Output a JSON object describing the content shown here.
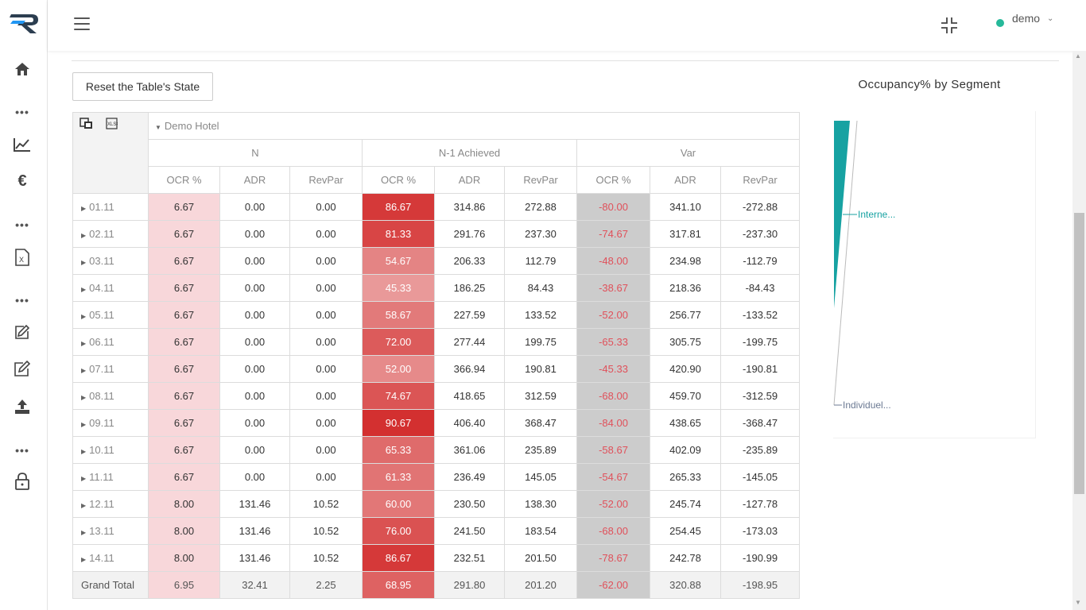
{
  "topbar": {
    "user": "demo",
    "status_color": "#26b99a"
  },
  "sidebar": {
    "items": [
      {
        "name": "home-icon"
      },
      {
        "name": "more-dots-1"
      },
      {
        "name": "chart-line-icon"
      },
      {
        "name": "euro-icon"
      },
      {
        "name": "more-dots-2"
      },
      {
        "name": "excel-file-icon"
      },
      {
        "name": "more-dots-3"
      },
      {
        "name": "edit-square-icon"
      },
      {
        "name": "edit-note-icon"
      },
      {
        "name": "upload-icon"
      },
      {
        "name": "more-dots-4"
      },
      {
        "name": "lock-icon"
      }
    ]
  },
  "main": {
    "reset_button": "Reset the Table's State"
  },
  "pivot": {
    "hotel": "Demo Hotel",
    "groups": [
      "N",
      "N-1 Achieved",
      "Var"
    ],
    "columns": [
      "OCR %",
      "ADR",
      "RevPar",
      "OCR %",
      "ADR",
      "RevPar",
      "OCR %",
      "ADR",
      "RevPar"
    ],
    "rows": [
      {
        "label": "01.11",
        "values": [
          "6.67",
          "0.00",
          "0.00",
          "86.67",
          "314.86",
          "272.88",
          "-80.00",
          "341.10",
          "-272.88"
        ]
      },
      {
        "label": "02.11",
        "values": [
          "6.67",
          "0.00",
          "0.00",
          "81.33",
          "291.76",
          "237.30",
          "-74.67",
          "317.81",
          "-237.30"
        ]
      },
      {
        "label": "03.11",
        "values": [
          "6.67",
          "0.00",
          "0.00",
          "54.67",
          "206.33",
          "112.79",
          "-48.00",
          "234.98",
          "-112.79"
        ]
      },
      {
        "label": "04.11",
        "values": [
          "6.67",
          "0.00",
          "0.00",
          "45.33",
          "186.25",
          "84.43",
          "-38.67",
          "218.36",
          "-84.43"
        ]
      },
      {
        "label": "05.11",
        "values": [
          "6.67",
          "0.00",
          "0.00",
          "58.67",
          "227.59",
          "133.52",
          "-52.00",
          "256.77",
          "-133.52"
        ]
      },
      {
        "label": "06.11",
        "values": [
          "6.67",
          "0.00",
          "0.00",
          "72.00",
          "277.44",
          "199.75",
          "-65.33",
          "305.75",
          "-199.75"
        ]
      },
      {
        "label": "07.11",
        "values": [
          "6.67",
          "0.00",
          "0.00",
          "52.00",
          "366.94",
          "190.81",
          "-45.33",
          "420.90",
          "-190.81"
        ]
      },
      {
        "label": "08.11",
        "values": [
          "6.67",
          "0.00",
          "0.00",
          "74.67",
          "418.65",
          "312.59",
          "-68.00",
          "459.70",
          "-312.59"
        ]
      },
      {
        "label": "09.11",
        "values": [
          "6.67",
          "0.00",
          "0.00",
          "90.67",
          "406.40",
          "368.47",
          "-84.00",
          "438.65",
          "-368.47"
        ]
      },
      {
        "label": "10.11",
        "values": [
          "6.67",
          "0.00",
          "0.00",
          "65.33",
          "361.06",
          "235.89",
          "-58.67",
          "402.09",
          "-235.89"
        ]
      },
      {
        "label": "11.11",
        "values": [
          "6.67",
          "0.00",
          "0.00",
          "61.33",
          "236.49",
          "145.05",
          "-54.67",
          "265.33",
          "-145.05"
        ]
      },
      {
        "label": "12.11",
        "values": [
          "8.00",
          "131.46",
          "10.52",
          "60.00",
          "230.50",
          "138.30",
          "-52.00",
          "245.74",
          "-127.78"
        ]
      },
      {
        "label": "13.11",
        "values": [
          "8.00",
          "131.46",
          "10.52",
          "76.00",
          "241.50",
          "183.54",
          "-68.00",
          "254.45",
          "-173.03"
        ]
      },
      {
        "label": "14.11",
        "values": [
          "8.00",
          "131.46",
          "10.52",
          "86.67",
          "232.51",
          "201.50",
          "-78.67",
          "242.78",
          "-190.99"
        ]
      }
    ],
    "total": {
      "label": "Grand Total",
      "values": [
        "6.95",
        "32.41",
        "2.25",
        "68.95",
        "291.80",
        "201.20",
        "-62.00",
        "320.88",
        "-198.95"
      ]
    },
    "colors": {
      "pink": "#f8d7da",
      "var_grey": "#cccccc",
      "var_text": "#e0505a",
      "heat_low": "#e99a9a",
      "heat_high": "#d32f2f"
    }
  },
  "chart": {
    "title": "Occupancy% by Segment",
    "labels": [
      "Interne...",
      "Individuel..."
    ],
    "colors": [
      "#17a2a2",
      "#6c7a93"
    ]
  },
  "chart_data": {
    "type": "pie",
    "title": "Occupancy% by Segment",
    "categories": [
      "Interne...",
      "Individuel..."
    ],
    "values": [
      1,
      99
    ],
    "colors": [
      "#17a2a2",
      "#6c7a93"
    ]
  }
}
